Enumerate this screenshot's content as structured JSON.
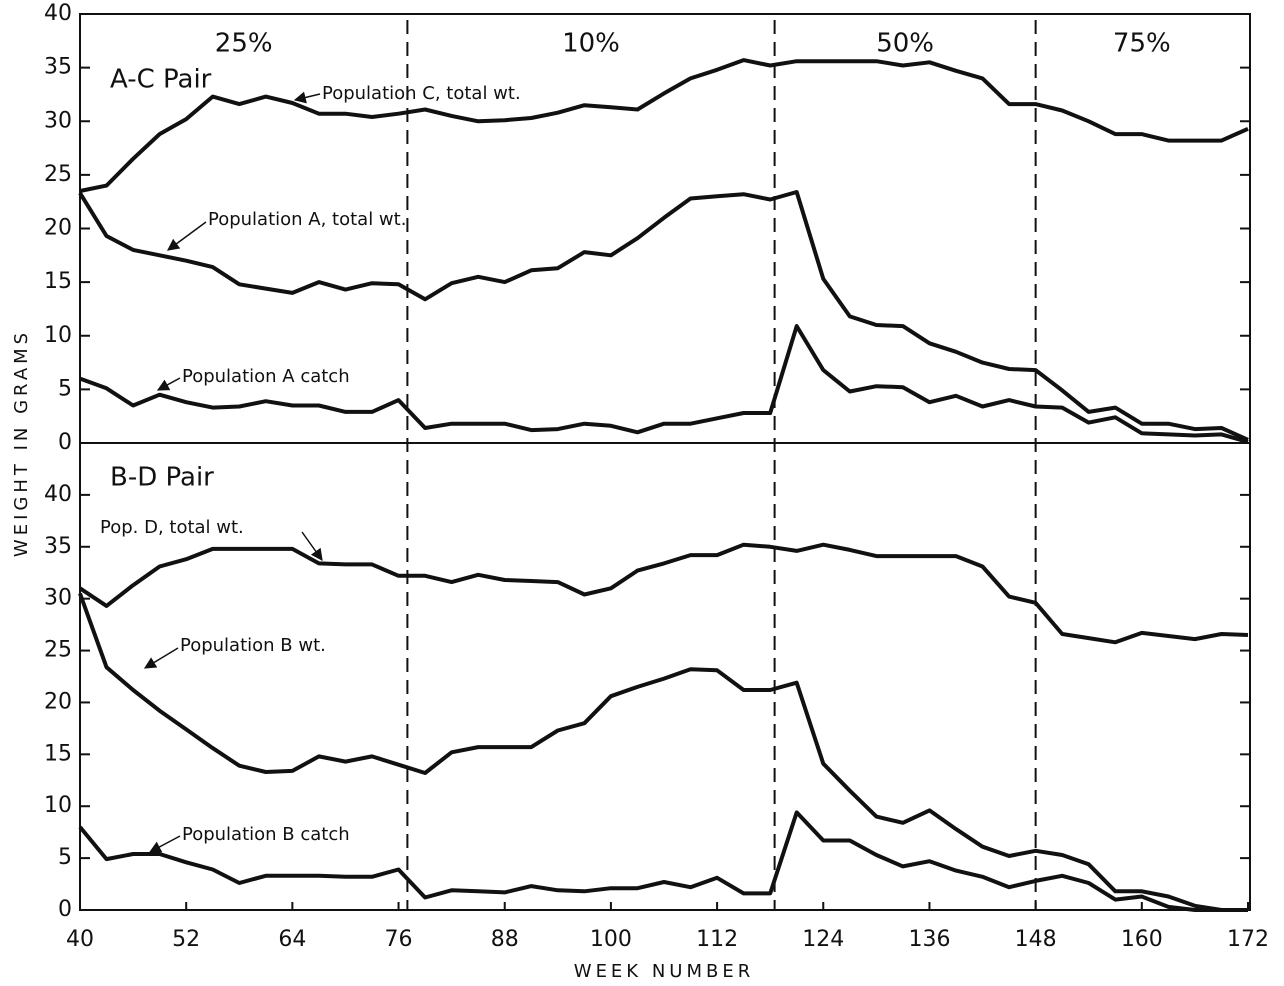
{
  "chart_data": [
    {
      "type": "line",
      "title": "A-C Pair",
      "y_label": "WEIGHT IN GRAMS",
      "xlim": [
        40,
        172
      ],
      "ylim": [
        0,
        40
      ],
      "yticks": [
        0,
        5,
        10,
        15,
        20,
        25,
        30,
        35,
        40
      ],
      "dividers": [
        77,
        118.5,
        148
      ],
      "regions": [
        {
          "label": "25%"
        },
        {
          "label": "10%"
        },
        {
          "label": "50%"
        },
        {
          "label": "75%"
        }
      ],
      "x": [
        40,
        43,
        46,
        49,
        52,
        55,
        58,
        61,
        64,
        67,
        70,
        73,
        76,
        79,
        82,
        85,
        88,
        91,
        94,
        97,
        100,
        103,
        106,
        109,
        112,
        115,
        118,
        121,
        124,
        127,
        130,
        133,
        136,
        139,
        142,
        145,
        148,
        151,
        154,
        157,
        160,
        163,
        166,
        169,
        172
      ],
      "series": [
        {
          "name": "Population C, total wt.",
          "color": "#111",
          "values": [
            23.5,
            24,
            26.5,
            28.8,
            30.2,
            32.3,
            31.6,
            32.3,
            31.7,
            30.7,
            30.7,
            30.4,
            30.7,
            31.1,
            30.5,
            30,
            30.1,
            30.3,
            30.8,
            31.5,
            31.3,
            31.1,
            32.6,
            34,
            34.8,
            35.7,
            35.2,
            35.6,
            35.6,
            35.6,
            35.6,
            35.2,
            35.5,
            34.7,
            34,
            31.6,
            31.6,
            31,
            30,
            28.8,
            28.8,
            28.2,
            28.2,
            28.2,
            29.3
          ]
        },
        {
          "name": "Population A, total wt.",
          "color": "#111",
          "values": [
            23.3,
            19.3,
            18,
            17.5,
            17,
            16.4,
            14.8,
            14.4,
            14,
            15,
            14.3,
            14.9,
            14.8,
            13.4,
            14.9,
            15.5,
            15,
            16.1,
            16.3,
            17.8,
            17.5,
            19.1,
            21,
            22.8,
            23,
            23.2,
            22.7,
            23.4,
            15.3,
            11.8,
            11,
            10.9,
            9.3,
            8.5,
            7.5,
            6.9,
            6.8,
            4.9,
            2.9,
            3.3,
            1.8,
            1.8,
            1.3,
            1.4,
            0.3
          ]
        },
        {
          "name": "Population A catch",
          "color": "#111",
          "values": [
            6,
            5.1,
            3.5,
            4.5,
            3.8,
            3.3,
            3.4,
            3.9,
            3.5,
            3.5,
            2.9,
            2.9,
            4,
            1.4,
            1.8,
            1.8,
            1.8,
            1.2,
            1.3,
            1.8,
            1.6,
            1,
            1.8,
            1.8,
            2.3,
            2.8,
            2.8,
            10.9,
            6.8,
            4.8,
            5.3,
            5.2,
            3.8,
            4.4,
            3.4,
            4,
            3.4,
            3.3,
            1.9,
            2.4,
            0.9,
            0.8,
            0.7,
            0.8,
            0.1
          ]
        }
      ]
    },
    {
      "type": "line",
      "title": "B-D Pair",
      "x_label": "WEEK NUMBER",
      "xlim": [
        40,
        172
      ],
      "xticks": [
        40,
        52,
        64,
        76,
        88,
        100,
        112,
        124,
        136,
        148,
        160,
        172
      ],
      "ylim": [
        0,
        45
      ],
      "yticks": [
        0,
        5,
        10,
        15,
        20,
        25,
        30,
        35,
        40
      ],
      "x": [
        40,
        43,
        46,
        49,
        52,
        55,
        58,
        61,
        64,
        67,
        70,
        73,
        76,
        79,
        82,
        85,
        88,
        91,
        94,
        97,
        100,
        103,
        106,
        109,
        112,
        115,
        118,
        121,
        124,
        127,
        130,
        133,
        136,
        139,
        142,
        145,
        148,
        151,
        154,
        157,
        160,
        163,
        166,
        169,
        172
      ],
      "series": [
        {
          "name": "Pop. D, total wt.",
          "color": "#111",
          "values": [
            31,
            29.3,
            31.3,
            33.1,
            33.8,
            34.8,
            34.8,
            34.8,
            34.8,
            33.4,
            33.3,
            33.3,
            32.2,
            32.2,
            31.6,
            32.3,
            31.8,
            31.7,
            31.6,
            30.4,
            31,
            32.7,
            33.4,
            34.2,
            34.2,
            35.2,
            35,
            34.6,
            35.2,
            34.7,
            34.1,
            34.1,
            34.1,
            34.1,
            33.1,
            30.2,
            29.6,
            26.6,
            26.2,
            25.8,
            26.7,
            26.4,
            26.1,
            26.6,
            26.5
          ]
        },
        {
          "name": "Population B wt.",
          "color": "#111",
          "values": [
            30.5,
            23.4,
            21.2,
            19.2,
            17.4,
            15.6,
            13.9,
            13.3,
            13.4,
            14.8,
            14.3,
            14.8,
            14,
            13.2,
            15.2,
            15.7,
            15.7,
            15.7,
            17.3,
            18,
            20.6,
            21.5,
            22.3,
            23.2,
            23.1,
            21.2,
            21.2,
            21.9,
            14.1,
            11.5,
            9,
            8.4,
            9.6,
            7.8,
            6.1,
            5.2,
            5.7,
            5.3,
            4.4,
            1.8,
            1.8,
            1.3,
            0.4,
            0,
            0
          ]
        },
        {
          "name": "Population B catch",
          "color": "#111",
          "values": [
            8,
            4.9,
            5.4,
            5.4,
            4.6,
            3.9,
            2.6,
            3.3,
            3.3,
            3.3,
            3.2,
            3.2,
            3.9,
            1.2,
            1.9,
            1.8,
            1.7,
            2.3,
            1.9,
            1.8,
            2.1,
            2.1,
            2.7,
            2.2,
            3.1,
            1.6,
            1.6,
            9.4,
            6.7,
            6.7,
            5.3,
            4.2,
            4.7,
            3.8,
            3.2,
            2.2,
            2.8,
            3.3,
            2.6,
            1,
            1.3,
            0.3,
            0,
            0,
            0
          ]
        }
      ]
    }
  ]
}
